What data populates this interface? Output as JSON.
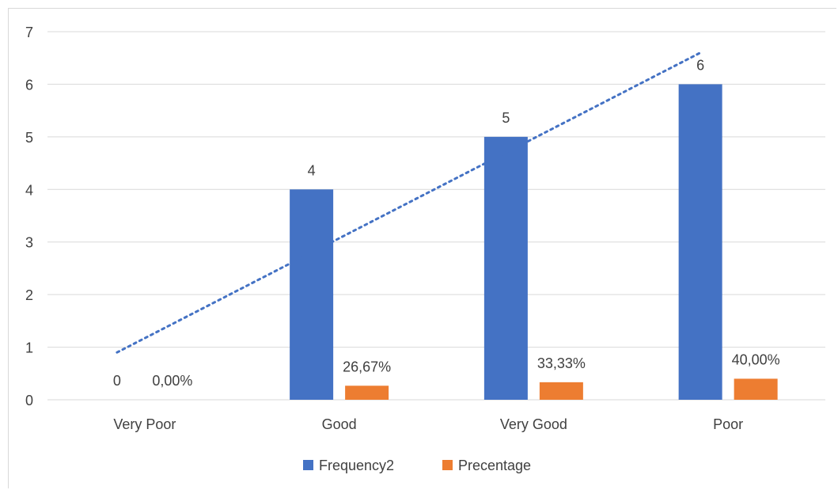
{
  "chart_data": {
    "type": "bar",
    "categories": [
      "Very Poor",
      "Good",
      "Very Good",
      "Poor"
    ],
    "series": [
      {
        "name": "Frequency2",
        "values": [
          0,
          4,
          5,
          6
        ],
        "labels": [
          "0",
          "4",
          "5",
          "6"
        ],
        "color": "#4472C4"
      },
      {
        "name": "Precentage",
        "values": [
          0.0,
          0.2667,
          0.3333,
          0.4
        ],
        "labels": [
          "0,00%",
          "26,67%",
          "33,33%",
          "40,00%"
        ],
        "color": "#ED7D31"
      }
    ],
    "trendline": {
      "series": "Frequency2",
      "type": "linear",
      "style": "dotted",
      "color": "#4472C4"
    },
    "ylim": [
      0,
      7
    ],
    "yticks": [
      "0",
      "1",
      "2",
      "3",
      "4",
      "5",
      "6",
      "7"
    ],
    "grid": true,
    "legend_position": "bottom"
  }
}
